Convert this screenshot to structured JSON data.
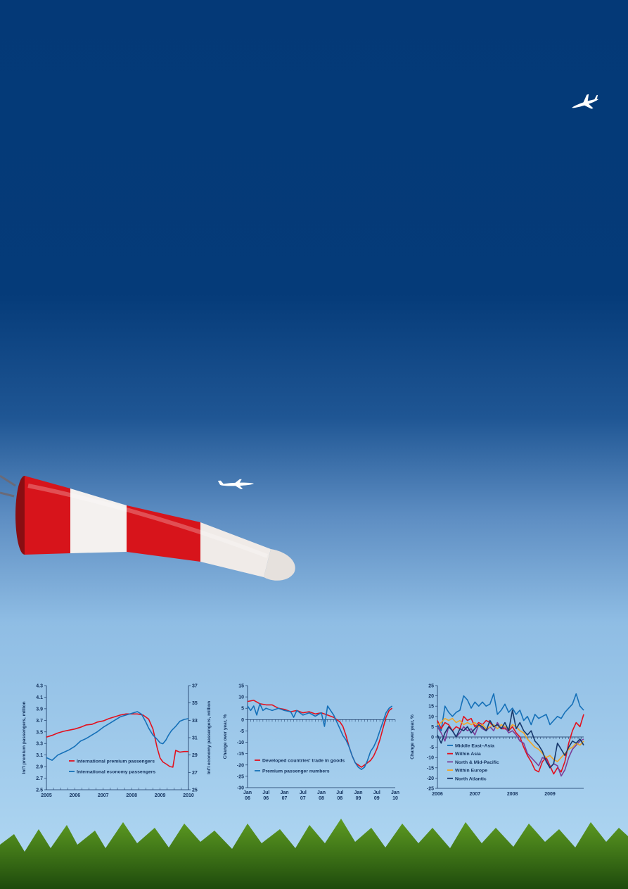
{
  "colors": {
    "sky_top": "#043977",
    "sky_bottom": "#a9d3f0",
    "axis": "#13325e",
    "red": "#e3101d",
    "blue": "#1570b8",
    "purple": "#7b3e98",
    "orange": "#f2a625",
    "navy": "#17386c"
  },
  "chart_data": [
    {
      "type": "line",
      "x_range": [
        2005,
        2010
      ],
      "xticks": [
        "2005",
        "2006",
        "2007",
        "2008",
        "2009",
        "2010"
      ],
      "ylabel": "Int'l premium passengers, million",
      "ylim": [
        2.5,
        4.3
      ],
      "yticks": [
        "2.5",
        "2.7",
        "2.9",
        "3.1",
        "3.3",
        "3.5",
        "3.7",
        "3.9",
        "4.1",
        "4.3"
      ],
      "y2label": "Int'l economy passengers, million",
      "y2lim": [
        25,
        37
      ],
      "y2ticks": [
        "25",
        "27",
        "29",
        "31",
        "33",
        "35",
        "37"
      ],
      "legend_position": "bottom-left",
      "series": [
        {
          "name": "International premium passengers",
          "axis": "left",
          "color_key": "red",
          "x": [
            2005.0,
            2005.2,
            2005.4,
            2005.6,
            2005.8,
            2006.0,
            2006.2,
            2006.4,
            2006.6,
            2006.8,
            2007.0,
            2007.2,
            2007.4,
            2007.6,
            2007.8,
            2008.0,
            2008.2,
            2008.4,
            2008.6,
            2008.75,
            2008.9,
            2009.0,
            2009.1,
            2009.2,
            2009.35,
            2009.45,
            2009.55,
            2009.7,
            2009.85,
            2010.0
          ],
          "y": [
            3.41,
            3.44,
            3.48,
            3.51,
            3.53,
            3.55,
            3.58,
            3.62,
            3.63,
            3.67,
            3.69,
            3.73,
            3.76,
            3.79,
            3.81,
            3.81,
            3.81,
            3.79,
            3.72,
            3.55,
            3.22,
            3.05,
            2.98,
            2.95,
            2.9,
            2.89,
            3.18,
            3.15,
            3.16,
            3.16
          ]
        },
        {
          "name": "International economy passengers",
          "axis": "right",
          "color_key": "blue",
          "x": [
            2005.0,
            2005.2,
            2005.4,
            2005.6,
            2005.8,
            2006.0,
            2006.2,
            2006.4,
            2006.6,
            2006.8,
            2007.0,
            2007.2,
            2007.4,
            2007.6,
            2007.8,
            2008.0,
            2008.2,
            2008.35,
            2008.5,
            2008.6,
            2008.75,
            2008.9,
            2009.0,
            2009.1,
            2009.2,
            2009.3,
            2009.4,
            2009.55,
            2009.7,
            2009.85,
            2010.0
          ],
          "y": [
            28.7,
            28.4,
            29.0,
            29.3,
            29.6,
            30.0,
            30.6,
            30.9,
            31.3,
            31.7,
            32.2,
            32.6,
            33.0,
            33.4,
            33.6,
            33.8,
            34.0,
            33.7,
            32.8,
            32.1,
            31.3,
            30.8,
            30.4,
            30.3,
            30.7,
            31.3,
            31.8,
            32.3,
            32.9,
            33.1,
            33.2
          ]
        }
      ]
    },
    {
      "type": "line",
      "x_range": [
        0,
        48
      ],
      "xticks": [
        {
          "line1": "Jan",
          "line2": "06"
        },
        {
          "line1": "Jul",
          "line2": "06"
        },
        {
          "line1": "Jan",
          "line2": "07"
        },
        {
          "line1": "Jul",
          "line2": "07"
        },
        {
          "line1": "Jan",
          "line2": "08"
        },
        {
          "line1": "Jul",
          "line2": "08"
        },
        {
          "line1": "Jan",
          "line2": "09"
        },
        {
          "line1": "Jul",
          "line2": "09"
        },
        {
          "line1": "Jan",
          "line2": "10"
        }
      ],
      "ylabel": "Change over year, %",
      "ylim": [
        -30,
        15
      ],
      "yticks": [
        "15",
        "10",
        "5",
        "0",
        "-5",
        "-10",
        "-15",
        "-20",
        "-25",
        "-30"
      ],
      "legend_position": "bottom-left",
      "series": [
        {
          "name": "Developed countries' trade in goods",
          "color_key": "red",
          "x": [
            0,
            2,
            4,
            6,
            8,
            10,
            12,
            14,
            16,
            18,
            20,
            22,
            24,
            26,
            28,
            30,
            31,
            32,
            33,
            34,
            35,
            36,
            37,
            38,
            39,
            40,
            41,
            42,
            43,
            44,
            45,
            46,
            47
          ],
          "y": [
            8,
            8.5,
            7,
            6.5,
            6.5,
            5,
            4.5,
            3.5,
            4,
            3,
            3.5,
            2.5,
            3,
            2,
            1,
            -1,
            -3,
            -7,
            -12,
            -16,
            -19,
            -20,
            -21,
            -20,
            -19,
            -18,
            -16,
            -13,
            -9,
            -4,
            1,
            4,
            5
          ]
        },
        {
          "name": "Premium passenger numbers",
          "color_key": "blue",
          "x": [
            0,
            1,
            2,
            3,
            4,
            5,
            6,
            8,
            10,
            12,
            14,
            15,
            16,
            18,
            20,
            22,
            24,
            25,
            26,
            28,
            29,
            30,
            31,
            32,
            33,
            34,
            35,
            36,
            37,
            38,
            39,
            40,
            41,
            42,
            43,
            44,
            45,
            46,
            47
          ],
          "y": [
            6,
            4,
            6,
            2,
            7,
            4,
            5,
            4,
            5,
            4,
            3.5,
            1,
            4,
            2,
            3,
            1.5,
            3,
            -3,
            6,
            2,
            -1,
            -4,
            -7,
            -9,
            -12,
            -16,
            -19,
            -21,
            -22,
            -21,
            -18,
            -14,
            -12,
            -9,
            -5,
            -1,
            3,
            5,
            6
          ]
        }
      ]
    },
    {
      "type": "line",
      "x_range": [
        2006,
        2009.9
      ],
      "xticks": [
        "2006",
        "2007",
        "2008",
        "2009"
      ],
      "ylabel": "Change over year, %",
      "ylim": [
        -25,
        25
      ],
      "yticks": [
        "25",
        "20",
        "15",
        "10",
        "5",
        "0",
        "-5",
        "-10",
        "-15",
        "-20",
        "-25"
      ],
      "legend_position": "bottom-left",
      "series": [
        {
          "name": "Middle East–Asia",
          "color_key": "blue",
          "x": [
            2006.0,
            2006.1,
            2006.2,
            2006.3,
            2006.4,
            2006.5,
            2006.6,
            2006.7,
            2006.8,
            2006.9,
            2007.0,
            2007.1,
            2007.2,
            2007.3,
            2007.4,
            2007.5,
            2007.6,
            2007.7,
            2007.8,
            2007.9,
            2008.0,
            2008.1,
            2008.2,
            2008.3,
            2008.4,
            2008.5,
            2008.6,
            2008.7,
            2008.8,
            2008.9,
            2009.0,
            2009.1,
            2009.2,
            2009.3,
            2009.4,
            2009.5,
            2009.6,
            2009.7,
            2009.8,
            2009.9
          ],
          "y": [
            6,
            3,
            15,
            12,
            10,
            12,
            13,
            20,
            18,
            14,
            17,
            15,
            17,
            15,
            16,
            21,
            11,
            13,
            16,
            12,
            14,
            11,
            13,
            8,
            10,
            6,
            11,
            9,
            10,
            11,
            6,
            8,
            10,
            9,
            12,
            14,
            16,
            21,
            15,
            13
          ]
        },
        {
          "name": "Within Asia",
          "color_key": "red",
          "x": [
            2006.0,
            2006.1,
            2006.2,
            2006.3,
            2006.4,
            2006.5,
            2006.6,
            2006.7,
            2006.8,
            2006.9,
            2007.0,
            2007.1,
            2007.2,
            2007.3,
            2007.4,
            2007.5,
            2007.6,
            2007.7,
            2007.8,
            2007.9,
            2008.0,
            2008.1,
            2008.2,
            2008.3,
            2008.4,
            2008.5,
            2008.6,
            2008.7,
            2008.8,
            2008.9,
            2009.0,
            2009.1,
            2009.2,
            2009.3,
            2009.4,
            2009.5,
            2009.6,
            2009.7,
            2009.8,
            2009.9
          ],
          "y": [
            8,
            4,
            7,
            6,
            3,
            5,
            4,
            10,
            8,
            9,
            5,
            7,
            6,
            8,
            7,
            5,
            6,
            4,
            4,
            3,
            5,
            2,
            0,
            -5,
            -9,
            -12,
            -16,
            -17,
            -12,
            -10,
            -14,
            -18,
            -15,
            -17,
            -12,
            -3,
            3,
            7,
            5,
            11
          ]
        },
        {
          "name": "North & Mid-Pacific",
          "color_key": "purple",
          "x": [
            2006.0,
            2006.1,
            2006.2,
            2006.3,
            2006.4,
            2006.5,
            2006.6,
            2006.7,
            2006.8,
            2006.9,
            2007.0,
            2007.1,
            2007.2,
            2007.3,
            2007.4,
            2007.5,
            2007.6,
            2007.7,
            2007.8,
            2007.9,
            2008.0,
            2008.1,
            2008.2,
            2008.3,
            2008.4,
            2008.5,
            2008.6,
            2008.7,
            2008.8,
            2008.9,
            2009.0,
            2009.1,
            2009.2,
            2009.3,
            2009.4,
            2009.5,
            2009.6,
            2009.7,
            2009.8,
            2009.9
          ],
          "y": [
            5,
            2,
            -2,
            5,
            3,
            0,
            2,
            5,
            3,
            4,
            1,
            6,
            4,
            3,
            5,
            3,
            7,
            4,
            5,
            2,
            3,
            1,
            -2,
            -3,
            -8,
            -10,
            -12,
            -14,
            -10,
            -11,
            -15,
            -13,
            -14,
            -19,
            -16,
            -10,
            -6,
            -4,
            -2,
            -1
          ]
        },
        {
          "name": "Within Europe",
          "color_key": "orange",
          "x": [
            2006.0,
            2006.1,
            2006.2,
            2006.3,
            2006.4,
            2006.5,
            2006.6,
            2006.7,
            2006.8,
            2006.9,
            2007.0,
            2007.1,
            2007.2,
            2007.3,
            2007.4,
            2007.5,
            2007.6,
            2007.7,
            2007.8,
            2007.9,
            2008.0,
            2008.1,
            2008.2,
            2008.3,
            2008.4,
            2008.5,
            2008.6,
            2008.7,
            2008.8,
            2008.9,
            2009.0,
            2009.1,
            2009.2,
            2009.3,
            2009.4,
            2009.5,
            2009.6,
            2009.7,
            2009.8,
            2009.9
          ],
          "y": [
            6,
            7,
            9,
            8,
            9,
            7,
            8,
            6,
            7,
            6,
            7,
            5,
            6,
            4,
            5,
            6,
            4,
            6,
            5,
            4,
            6,
            5,
            3,
            2,
            -1,
            -3,
            -5,
            -6,
            -8,
            -10,
            -9,
            -11,
            -12,
            -10,
            -8,
            -6,
            -5,
            -3,
            -4,
            -2
          ]
        },
        {
          "name": "North Atlantic",
          "color_key": "navy",
          "x": [
            2006.0,
            2006.1,
            2006.2,
            2006.3,
            2006.4,
            2006.5,
            2006.6,
            2006.7,
            2006.8,
            2006.9,
            2007.0,
            2007.1,
            2007.2,
            2007.3,
            2007.4,
            2007.5,
            2007.6,
            2007.7,
            2007.8,
            2007.9,
            2008.0,
            2008.1,
            2008.2,
            2008.3,
            2008.4,
            2008.5,
            2008.6,
            2008.7,
            2008.8,
            2008.9,
            2009.0,
            2009.1,
            2009.2,
            2009.3,
            2009.4,
            2009.5,
            2009.6,
            2009.7,
            2009.8,
            2009.9
          ],
          "y": [
            1,
            -3,
            2,
            5,
            3,
            0,
            4,
            3,
            5,
            2,
            4,
            6,
            5,
            3,
            8,
            5,
            6,
            4,
            7,
            3,
            13,
            4,
            7,
            3,
            1,
            3,
            -2,
            -4,
            -7,
            -12,
            -15,
            -13,
            -3,
            -6,
            -9,
            -5,
            -2,
            -3,
            -1,
            -4
          ]
        }
      ]
    }
  ]
}
